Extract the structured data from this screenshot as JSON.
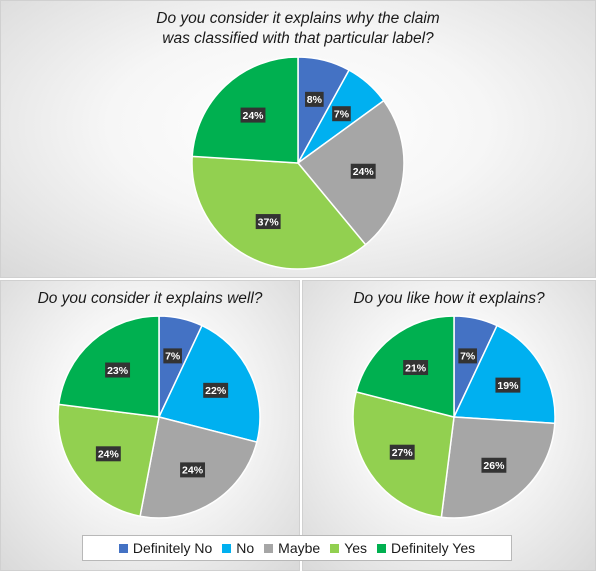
{
  "chart_data": [
    {
      "type": "pie",
      "title": "Do you consider it explains why the claim\nwas classified with that particular label?",
      "categories": [
        "Definitely No",
        "No",
        "Maybe",
        "Yes",
        "Definitely Yes"
      ],
      "values": [
        8,
        7,
        24,
        37,
        24
      ],
      "labels": [
        "8%",
        "7%",
        "24%",
        "37%",
        "24%"
      ]
    },
    {
      "type": "pie",
      "title": "Do you consider it explains well?",
      "categories": [
        "Definitely No",
        "No",
        "Maybe",
        "Yes",
        "Definitely Yes"
      ],
      "values": [
        7,
        22,
        24,
        24,
        23
      ],
      "labels": [
        "7%",
        "22%",
        "24%",
        "24%",
        "23%"
      ]
    },
    {
      "type": "pie",
      "title": "Do you like how it explains?",
      "categories": [
        "Definitely No",
        "No",
        "Maybe",
        "Yes",
        "Definitely Yes"
      ],
      "values": [
        7,
        19,
        26,
        27,
        21
      ],
      "labels": [
        "7%",
        "19%",
        "26%",
        "27%",
        "21%"
      ]
    }
  ],
  "legend": {
    "position": "bottom",
    "items": [
      {
        "label": "Definitely No",
        "color": "#4472c4"
      },
      {
        "label": "No",
        "color": "#00b0f0"
      },
      {
        "label": "Maybe",
        "color": "#a6a6a6"
      },
      {
        "label": "Yes",
        "color": "#92d050"
      },
      {
        "label": "Definitely Yes",
        "color": "#00b050"
      }
    ]
  }
}
